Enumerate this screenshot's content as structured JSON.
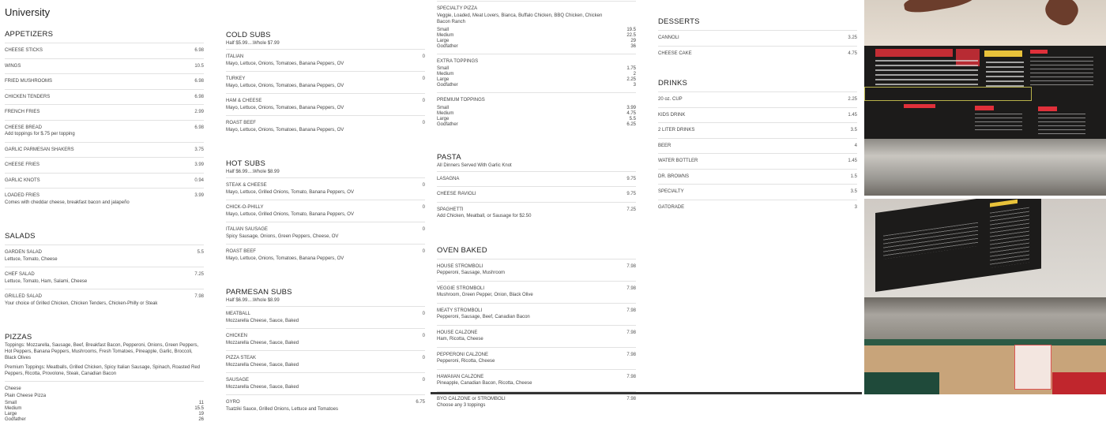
{
  "page_title": "University",
  "columns": [
    {
      "blocks": [
        {
          "heading": "APPETIZERS",
          "items": [
            {
              "name": "CHEESE STICKS",
              "price": "6.98"
            },
            {
              "name": "WINGS",
              "price": "10.5"
            },
            {
              "name": "FRIED MUSHROOMS",
              "price": "6.98"
            },
            {
              "name": "CHICKEN TENDERS",
              "price": "6.98"
            },
            {
              "name": "FRENCH FRIES",
              "price": "2.99"
            },
            {
              "name": "CHEESE BREAD",
              "price": "6.98",
              "desc": "Add toppings for $.75 per topping"
            },
            {
              "name": "GARLIC PARMESAN SHAKERS",
              "price": "3.75"
            },
            {
              "name": "CHEESE FRIES",
              "price": "3.99"
            },
            {
              "name": "GARLIC KNOTS",
              "price": "0.94"
            },
            {
              "name": "LOADED FRIES",
              "price": "3.99",
              "desc": "Comes with cheddar cheese, breakfast bacon and jalapeño"
            }
          ]
        },
        {
          "heading": "SALADS",
          "items": [
            {
              "name": "GARDEN SALAD",
              "price": "5.5",
              "desc": "Lettuce, Tomato, Cheese"
            },
            {
              "name": "CHEF SALAD",
              "price": "7.25",
              "desc": "Lettuce, Tomato, Ham, Salami, Cheese"
            },
            {
              "name": "GRILLED SALAD",
              "price": "7.98",
              "desc": "Your choice of Grilled Chicken, Chicken Tenders, Chicken-Philly or Steak"
            }
          ]
        },
        {
          "heading": "PIZZAS",
          "notes": [
            "Toppings: Mozzarella, Sausage, Beef, Breakfast Bacon, Pepperoni, Onions, Green Peppers, Hot Peppers, Banana Peppers, Mushrooms, Fresh Tomatoes, Pineapple, Garlic, Broccoli, Black Olives",
            "Premium Toppings: Meatballs, Grilled Chicken, Spicy Italian Sausage, Spinach, Roasted Red Peppers, Ricotta, Provolone, Steak, Canadian Bacon"
          ],
          "items": [
            {
              "name": "Cheese",
              "desc": "Plain Cheese Pizza",
              "sizes": [
                {
                  "label": "Small",
                  "price": "11"
                },
                {
                  "label": "Medium",
                  "price": "15.5"
                },
                {
                  "label": "Large",
                  "price": "19"
                },
                {
                  "label": "Godfather",
                  "price": "26"
                }
              ]
            }
          ]
        }
      ]
    },
    {
      "blocks": [
        {
          "heading": "COLD SUBS",
          "note": "Half $5.99....Whole $7.99",
          "items": [
            {
              "name": "ITALIAN",
              "price": "0",
              "desc": "Mayo, Lettuce, Onions, Tomatoes, Banana Peppers, OV"
            },
            {
              "name": "TURKEY",
              "price": "0",
              "desc": "Mayo, Lettuce, Onions, Tomatoes, Banana Peppers, OV"
            },
            {
              "name": "HAM & CHEESE",
              "price": "0",
              "desc": "Mayo, Lettuce, Onions, Tomatoes, Banana Peppers, OV"
            },
            {
              "name": "ROAST BEEF",
              "price": "0",
              "desc": "Mayo, Lettuce, Onions, Tomatoes, Banana Peppers, OV"
            }
          ]
        },
        {
          "heading": "HOT SUBS",
          "note": "Half $6.99....Whole $8.99",
          "items": [
            {
              "name": "STEAK & CHEESE",
              "price": "0",
              "desc": "Mayo, Lettuce, Grilled Onions, Tomato, Banana Peppers, OV"
            },
            {
              "name": "CHICK-O-PHILLY",
              "price": "0",
              "desc": "Mayo, Lettuce, Grilled Onions, Tomato, Banana Peppers, OV"
            },
            {
              "name": "ITALIAN SAUSAGE",
              "price": "0",
              "desc": "Spicy Sausage, Onions, Green Peppers, Cheese, OV"
            },
            {
              "name": "ROAST BEEF",
              "price": "0",
              "desc": "Mayo, Lettuce, Onions, Tomatoes, Banana Peppers, OV"
            }
          ]
        },
        {
          "heading": "PARMESAN SUBS",
          "note": "Half $6.99....Whole $8.99",
          "items": [
            {
              "name": "MEATBALL",
              "price": "0",
              "desc": "Mozzarella Cheese, Sauce, Baked"
            },
            {
              "name": "CHICKEN",
              "price": "0",
              "desc": "Mozzarella Cheese, Sauce, Baked"
            },
            {
              "name": "PIZZA STEAK",
              "price": "0",
              "desc": "Mozzarella Cheese, Sauce, Baked"
            },
            {
              "name": "SAUSAGE",
              "price": "0",
              "desc": "Mozzarella Cheese, Sauce, Baked"
            },
            {
              "name": "GYRO",
              "price": "6.75",
              "desc": "Tsatziki Sauce, Grilled Onions, Lettuce and Tomatoes"
            }
          ]
        }
      ]
    },
    {
      "blocks": [
        {
          "items": [
            {
              "name": "SPECIALTY PIZZA",
              "desc": "Veggie, Loaded, Meat Lovers, Bianca, Buffalo Chicken, BBQ Chicken, Chicken Bacon Ranch",
              "sizes": [
                {
                  "label": "Small",
                  "price": "19.5"
                },
                {
                  "label": "Medium",
                  "price": "22.5"
                },
                {
                  "label": "Large",
                  "price": "29"
                },
                {
                  "label": "Godfather",
                  "price": "36"
                }
              ]
            },
            {
              "name": "EXTRA TOPPINGS",
              "sizes": [
                {
                  "label": "Small",
                  "price": "1.75"
                },
                {
                  "label": "Medium",
                  "price": "2"
                },
                {
                  "label": "Large",
                  "price": "2.25"
                },
                {
                  "label": "Godfather",
                  "price": "3"
                }
              ]
            },
            {
              "name": "PREMIUM TOPPINGS",
              "sizes": [
                {
                  "label": "Small",
                  "price": "3.99"
                },
                {
                  "label": "Medium",
                  "price": "4.75"
                },
                {
                  "label": "Large",
                  "price": "5.5"
                },
                {
                  "label": "Godfather",
                  "price": "6.25"
                }
              ]
            }
          ]
        },
        {
          "heading": "PASTA",
          "note": "All Dinners Served With Garlic Knot",
          "items": [
            {
              "name": "LASAGNA",
              "price": "9.75"
            },
            {
              "name": "CHEESE RAVIOLI",
              "price": "9.75"
            },
            {
              "name": "SPAGHETTI",
              "price": "7.25",
              "desc": "Add Chicken, Meatball, or Sausage for $2.50"
            }
          ]
        },
        {
          "heading": "OVEN BAKED",
          "items": [
            {
              "name": "HOUSE STROMBOLI",
              "price": "7.98",
              "desc": "Pepperoni, Sausage, Mushroom"
            },
            {
              "name": "VEGGIE STROMBOLI",
              "price": "7.98",
              "desc": "Mushroom, Green Pepper, Onion, Black Olive"
            },
            {
              "name": "MEATY STROMBOLI",
              "price": "7.98",
              "desc": "Pepperoni, Sausage, Beef, Canadian Bacon"
            },
            {
              "name": "HOUSE CALZONE",
              "price": "7.98",
              "desc": "Ham, Ricotta, Cheese"
            },
            {
              "name": "PEPPERONI CALZONE",
              "price": "7.98",
              "desc": "Pepperoni, Ricotta, Cheese"
            },
            {
              "name": "HAWAIIAN CALZONE",
              "price": "7.98",
              "desc": "Pineapple, Canadian Bacon, Ricotta, Cheese"
            },
            {
              "name": "BYO CALZONE or STROMBOLI",
              "price": "7.98",
              "desc": "Choose any 3 toppings"
            }
          ]
        }
      ]
    },
    {
      "blocks": [
        {
          "heading": "DESSERTS",
          "items": [
            {
              "name": "CANNOLI",
              "price": "3.25"
            },
            {
              "name": "CHEESE CAKE",
              "price": "4.75"
            }
          ]
        },
        {
          "heading": "DRINKS",
          "items": [
            {
              "name": "20 oz. CUP",
              "price": "2.25"
            },
            {
              "name": "KIDS DRINK",
              "price": "1.45"
            },
            {
              "name": "2 LITER DRINKS",
              "price": "3.5"
            },
            {
              "name": "BEER",
              "price": "4"
            },
            {
              "name": "WATER BOTTLER",
              "price": "1.45"
            },
            {
              "name": "DR. BROWNS",
              "price": "1.5"
            },
            {
              "name": "SPECIALTY",
              "price": "3.5"
            },
            {
              "name": "GATORADE",
              "price": "3"
            }
          ]
        }
      ]
    }
  ],
  "photos": [
    {
      "name": "menu-board-photo",
      "board_lettering": "MICHAELANGELOS"
    },
    {
      "name": "restaurant-interior-photo"
    }
  ],
  "colors": {
    "text": "#333333",
    "divider": "#e2e2e2",
    "board": "#1c1b1a",
    "board_red": "#e0303a",
    "board_yellow": "#e8c23a"
  }
}
